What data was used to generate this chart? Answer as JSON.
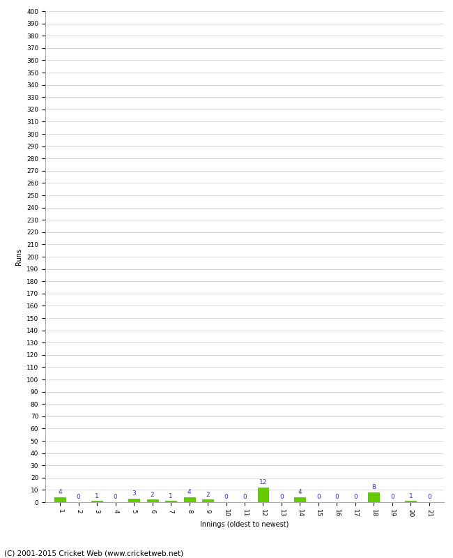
{
  "xlabel": "Innings (oldest to newest)",
  "ylabel": "Runs",
  "innings": [
    1,
    2,
    3,
    4,
    5,
    6,
    7,
    8,
    9,
    10,
    11,
    12,
    13,
    14,
    15,
    16,
    17,
    18,
    19,
    20,
    21
  ],
  "values": [
    4,
    0,
    1,
    0,
    3,
    2,
    1,
    4,
    2,
    0,
    0,
    12,
    0,
    4,
    0,
    0,
    0,
    8,
    0,
    1,
    0
  ],
  "bar_color": "#66cc00",
  "bar_edge_color": "#44aa00",
  "label_color": "#3333cc",
  "ylim": [
    0,
    400
  ],
  "yticks": [
    0,
    10,
    20,
    30,
    40,
    50,
    60,
    70,
    80,
    90,
    100,
    110,
    120,
    130,
    140,
    150,
    160,
    170,
    180,
    190,
    200,
    210,
    220,
    230,
    240,
    250,
    260,
    270,
    280,
    290,
    300,
    310,
    320,
    330,
    340,
    350,
    360,
    370,
    380,
    390,
    400
  ],
  "background_color": "#ffffff",
  "grid_color": "#cccccc",
  "footer": "(C) 2001-2015 Cricket Web (www.cricketweb.net)",
  "label_fontsize": 6.5,
  "axis_fontsize": 6.5,
  "ylabel_fontsize": 7,
  "xlabel_fontsize": 7,
  "footer_fontsize": 7.5,
  "xtick_rotation": 270
}
